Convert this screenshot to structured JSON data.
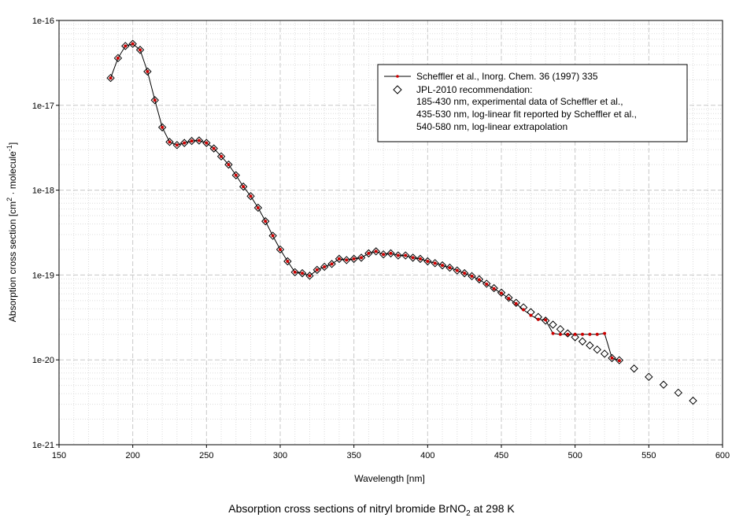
{
  "chart_data": {
    "type": "scatter",
    "title": "Absorption cross sections of nitryl bromide BrNO",
    "title_subscript": "2",
    "title_suffix": " at 298 K",
    "xlabel": "Wavelength [nm]",
    "ylabel_prefix": "Absorption cross section [cm",
    "ylabel_sup1": "2",
    "ylabel_mid": " · molecule",
    "ylabel_sup2": "-1",
    "ylabel_suffix": "]",
    "xlim": [
      150,
      600
    ],
    "ylim": [
      1e-21,
      1e-16
    ],
    "yscale": "log",
    "grid": true,
    "legend_position": "top-right",
    "x_ticks": [
      "150",
      "200",
      "250",
      "300",
      "350",
      "400",
      "450",
      "500",
      "550",
      "600"
    ],
    "y_ticks": [
      "1e-21",
      "1e-20",
      "1e-19",
      "1e-18",
      "1e-17",
      "1e-16"
    ],
    "legend": {
      "series1": "Scheffler et al., Inorg. Chem. 36 (1997) 335",
      "series2_lines": [
        "JPL-2010 recommendation:",
        "185-430 nm, experimental data of Scheffler et al.,",
        "435-530 nm, log-linear fit reported by Scheffler et al.,",
        "540-580 nm, log-linear extrapolation"
      ]
    },
    "series": [
      {
        "name": "Scheffler et al., Inorg. Chem. 36 (1997) 335",
        "style": "line-with-markers",
        "color": "#cc0000",
        "line_color": "#000000",
        "points": [
          [
            185,
            2.1e-17
          ],
          [
            190,
            3.6e-17
          ],
          [
            195,
            5e-17
          ],
          [
            200,
            5.3e-17
          ],
          [
            205,
            4.5e-17
          ],
          [
            210,
            2.5e-17
          ],
          [
            215,
            1.15e-17
          ],
          [
            220,
            5.5e-18
          ],
          [
            225,
            3.7e-18
          ],
          [
            230,
            3.4e-18
          ],
          [
            235,
            3.6e-18
          ],
          [
            240,
            3.8e-18
          ],
          [
            245,
            3.85e-18
          ],
          [
            250,
            3.6e-18
          ],
          [
            255,
            3.1e-18
          ],
          [
            260,
            2.5e-18
          ],
          [
            265,
            2e-18
          ],
          [
            270,
            1.5e-18
          ],
          [
            275,
            1.1e-18
          ],
          [
            280,
            8.5e-19
          ],
          [
            285,
            6.2e-19
          ],
          [
            290,
            4.3e-19
          ],
          [
            295,
            2.9e-19
          ],
          [
            300,
            2e-19
          ],
          [
            305,
            1.45e-19
          ],
          [
            310,
            1.08e-19
          ],
          [
            315,
            1.05e-19
          ],
          [
            320,
            9.8e-20
          ],
          [
            325,
            1.15e-19
          ],
          [
            330,
            1.25e-19
          ],
          [
            335,
            1.35e-19
          ],
          [
            340,
            1.55e-19
          ],
          [
            345,
            1.5e-19
          ],
          [
            350,
            1.55e-19
          ],
          [
            355,
            1.6e-19
          ],
          [
            360,
            1.8e-19
          ],
          [
            365,
            1.9e-19
          ],
          [
            370,
            1.75e-19
          ],
          [
            375,
            1.8e-19
          ],
          [
            380,
            1.7e-19
          ],
          [
            385,
            1.7e-19
          ],
          [
            390,
            1.6e-19
          ],
          [
            395,
            1.55e-19
          ],
          [
            400,
            1.45e-19
          ],
          [
            405,
            1.38e-19
          ],
          [
            410,
            1.3e-19
          ],
          [
            415,
            1.22e-19
          ],
          [
            420,
            1.13e-19
          ],
          [
            425,
            1.05e-19
          ],
          [
            430,
            9.7e-20
          ],
          [
            435,
            8.8e-20
          ],
          [
            440,
            7.8e-20
          ],
          [
            445,
            6.9e-20
          ],
          [
            450,
            6.1e-20
          ],
          [
            455,
            5.3e-20
          ],
          [
            460,
            4.6e-20
          ],
          [
            465,
            3.9e-20
          ],
          [
            470,
            3.35e-20
          ],
          [
            475,
            3e-20
          ],
          [
            480,
            2.95e-20
          ],
          [
            485,
            2.05e-20
          ],
          [
            490,
            2e-20
          ],
          [
            495,
            2e-20
          ],
          [
            500,
            2e-20
          ],
          [
            505,
            2e-20
          ],
          [
            510,
            2e-20
          ],
          [
            515,
            2e-20
          ],
          [
            520,
            2.05e-20
          ],
          [
            525,
            1.05e-20
          ],
          [
            530,
            9.8e-21
          ]
        ]
      },
      {
        "name": "JPL-2010 recommendation",
        "style": "open-diamond",
        "color": "#000000",
        "points": [
          [
            185,
            2.1e-17
          ],
          [
            190,
            3.6e-17
          ],
          [
            195,
            5e-17
          ],
          [
            200,
            5.3e-17
          ],
          [
            205,
            4.5e-17
          ],
          [
            210,
            2.5e-17
          ],
          [
            215,
            1.15e-17
          ],
          [
            220,
            5.5e-18
          ],
          [
            225,
            3.7e-18
          ],
          [
            230,
            3.4e-18
          ],
          [
            235,
            3.6e-18
          ],
          [
            240,
            3.8e-18
          ],
          [
            245,
            3.85e-18
          ],
          [
            250,
            3.6e-18
          ],
          [
            255,
            3.1e-18
          ],
          [
            260,
            2.5e-18
          ],
          [
            265,
            2e-18
          ],
          [
            270,
            1.5e-18
          ],
          [
            275,
            1.1e-18
          ],
          [
            280,
            8.5e-19
          ],
          [
            285,
            6.2e-19
          ],
          [
            290,
            4.3e-19
          ],
          [
            295,
            2.9e-19
          ],
          [
            300,
            2e-19
          ],
          [
            305,
            1.45e-19
          ],
          [
            310,
            1.08e-19
          ],
          [
            315,
            1.05e-19
          ],
          [
            320,
            9.8e-20
          ],
          [
            325,
            1.15e-19
          ],
          [
            330,
            1.25e-19
          ],
          [
            335,
            1.35e-19
          ],
          [
            340,
            1.55e-19
          ],
          [
            345,
            1.5e-19
          ],
          [
            350,
            1.55e-19
          ],
          [
            355,
            1.6e-19
          ],
          [
            360,
            1.8e-19
          ],
          [
            365,
            1.9e-19
          ],
          [
            370,
            1.75e-19
          ],
          [
            375,
            1.8e-19
          ],
          [
            380,
            1.7e-19
          ],
          [
            385,
            1.7e-19
          ],
          [
            390,
            1.6e-19
          ],
          [
            395,
            1.55e-19
          ],
          [
            400,
            1.45e-19
          ],
          [
            405,
            1.38e-19
          ],
          [
            410,
            1.3e-19
          ],
          [
            415,
            1.22e-19
          ],
          [
            420,
            1.13e-19
          ],
          [
            425,
            1.05e-19
          ],
          [
            430,
            9.7e-20
          ],
          [
            435,
            8.9e-20
          ],
          [
            440,
            7.9e-20
          ],
          [
            445,
            7e-20
          ],
          [
            450,
            6.2e-20
          ],
          [
            455,
            5.4e-20
          ],
          [
            460,
            4.7e-20
          ],
          [
            465,
            4.15e-20
          ],
          [
            470,
            3.65e-20
          ],
          [
            475,
            3.2e-20
          ],
          [
            480,
            2.9e-20
          ],
          [
            485,
            2.6e-20
          ],
          [
            490,
            2.3e-20
          ],
          [
            495,
            2.05e-20
          ],
          [
            500,
            1.85e-20
          ],
          [
            505,
            1.65e-20
          ],
          [
            510,
            1.48e-20
          ],
          [
            515,
            1.32e-20
          ],
          [
            520,
            1.18e-20
          ],
          [
            525,
            1.05e-20
          ],
          [
            530,
            9.9e-21
          ],
          [
            540,
            7.9e-21
          ],
          [
            550,
            6.3e-21
          ],
          [
            560,
            5.1e-21
          ],
          [
            570,
            4.1e-21
          ],
          [
            580,
            3.3e-21
          ]
        ]
      }
    ]
  }
}
